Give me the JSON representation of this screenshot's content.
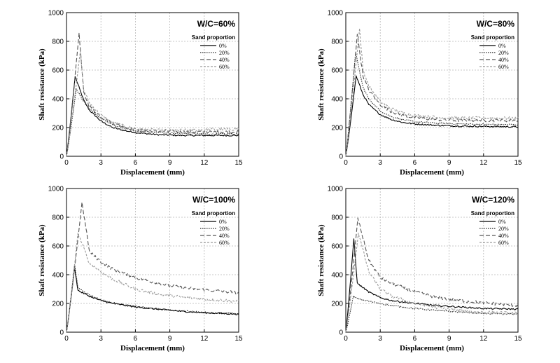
{
  "chart_data": [
    {
      "type": "line",
      "title": "W/C=60%",
      "xlabel": "Displacement (mm)",
      "ylabel": "Shaft resistance (kPa)",
      "xlim": [
        0,
        15
      ],
      "ylim": [
        0,
        1000
      ],
      "xticks": [
        "0",
        "3",
        "6",
        "9",
        "12",
        "15"
      ],
      "yticks": [
        "0",
        "200",
        "400",
        "600",
        "800",
        "1000"
      ],
      "grid": true,
      "legend_title": "Sand proportion",
      "legend_position": "top-right",
      "series": [
        {
          "name": "0%",
          "color": "#000000",
          "dash": "",
          "peak": [
            0.75,
            555
          ],
          "x": [
            1.5,
            2,
            3,
            4,
            5,
            6,
            8,
            10,
            12,
            15
          ],
          "y": [
            390,
            320,
            245,
            200,
            180,
            165,
            150,
            145,
            145,
            145
          ]
        },
        {
          "name": "20%",
          "color": "#222222",
          "dash": "1.5 1.5",
          "peak": [
            0.85,
            470
          ],
          "x": [
            1.5,
            2,
            3,
            4,
            5,
            6,
            8,
            10,
            12,
            15
          ],
          "y": [
            380,
            330,
            265,
            220,
            195,
            175,
            165,
            160,
            155,
            155
          ]
        },
        {
          "name": "40%",
          "color": "#555555",
          "dash": "6 3",
          "peak": [
            1.1,
            860
          ],
          "x": [
            1.5,
            2,
            3,
            4,
            5,
            6,
            8,
            10,
            12,
            15
          ],
          "y": [
            440,
            350,
            275,
            230,
            205,
            185,
            175,
            170,
            170,
            170
          ]
        },
        {
          "name": "60%",
          "color": "#9a9a9a",
          "dash": "3 2",
          "peak": [
            1.2,
            730
          ],
          "x": [
            1.5,
            2,
            3,
            4,
            5,
            6,
            8,
            10,
            12,
            15
          ],
          "y": [
            460,
            370,
            285,
            235,
            210,
            190,
            180,
            180,
            185,
            190
          ]
        }
      ]
    },
    {
      "type": "line",
      "title": "W/C=80%",
      "xlabel": "Displacement (mm)",
      "ylabel": "Shaft resistance (kPa)",
      "xlim": [
        0,
        15
      ],
      "ylim": [
        0,
        1000
      ],
      "xticks": [
        "0",
        "3",
        "6",
        "9",
        "12",
        "15"
      ],
      "yticks": [
        "0",
        "200",
        "400",
        "600",
        "800",
        "1000"
      ],
      "grid": true,
      "legend_title": "Sand proportion",
      "legend_position": "top-right",
      "series": [
        {
          "name": "0%",
          "color": "#000000",
          "dash": "",
          "peak": [
            0.9,
            560
          ],
          "x": [
            1.5,
            2,
            3,
            4,
            5,
            6,
            8,
            10,
            12,
            15
          ],
          "y": [
            430,
            360,
            290,
            255,
            235,
            225,
            215,
            210,
            208,
            205
          ]
        },
        {
          "name": "20%",
          "color": "#222222",
          "dash": "1.5 1.5",
          "peak": [
            0.85,
            720
          ],
          "x": [
            1.5,
            2,
            3,
            4,
            5,
            6,
            8,
            10,
            12,
            15
          ],
          "y": [
            480,
            400,
            315,
            275,
            255,
            240,
            230,
            225,
            222,
            220
          ]
        },
        {
          "name": "40%",
          "color": "#555555",
          "dash": "6 3",
          "peak": [
            1.0,
            850
          ],
          "x": [
            1.5,
            2,
            3,
            4,
            5,
            6,
            8,
            10,
            12,
            15
          ],
          "y": [
            560,
            460,
            360,
            310,
            285,
            270,
            255,
            250,
            250,
            250
          ]
        },
        {
          "name": "60%",
          "color": "#9a9a9a",
          "dash": "3 2",
          "peak": [
            1.2,
            890
          ],
          "x": [
            1.5,
            2,
            3,
            4,
            5,
            6,
            8,
            10,
            12,
            15
          ],
          "y": [
            600,
            490,
            380,
            330,
            300,
            285,
            270,
            265,
            265,
            265
          ]
        }
      ]
    },
    {
      "type": "line",
      "title": "W/C=100%",
      "xlabel": "Displacement (mm)",
      "ylabel": "Shaft resistance (kPa)",
      "xlim": [
        0,
        15
      ],
      "ylim": [
        0,
        1000
      ],
      "xticks": [
        "0",
        "3",
        "6",
        "9",
        "12",
        "15"
      ],
      "yticks": [
        "0",
        "200",
        "400",
        "600",
        "800",
        "1000"
      ],
      "grid": true,
      "legend_title": "Sand proportion",
      "legend_position": "top-right",
      "series": [
        {
          "name": "0%",
          "color": "#000000",
          "dash": "",
          "peak": [
            0.7,
            450
          ],
          "x": [
            1,
            2,
            3,
            4,
            6,
            8,
            10,
            12,
            15
          ],
          "y": [
            290,
            250,
            220,
            200,
            175,
            160,
            145,
            135,
            125
          ]
        },
        {
          "name": "20%",
          "color": "#222222",
          "dash": "1.5 1.5",
          "peak": [
            0.7,
            470
          ],
          "x": [
            1,
            2,
            3,
            4,
            6,
            8,
            10,
            12,
            15
          ],
          "y": [
            310,
            260,
            225,
            205,
            180,
            160,
            148,
            138,
            128
          ]
        },
        {
          "name": "40%",
          "color": "#555555",
          "dash": "6 3",
          "peak": [
            1.35,
            905
          ],
          "x": [
            2,
            3,
            4,
            6,
            8,
            10,
            12,
            15
          ],
          "y": [
            560,
            490,
            440,
            380,
            340,
            310,
            295,
            275
          ]
        },
        {
          "name": "60%",
          "color": "#9a9a9a",
          "dash": "3 2",
          "peak": [
            1.0,
            690
          ],
          "x": [
            2,
            3,
            4,
            6,
            8,
            10,
            12,
            15
          ],
          "y": [
            480,
            420,
            370,
            300,
            265,
            245,
            230,
            215
          ]
        }
      ]
    },
    {
      "type": "line",
      "title": "W/C=120%",
      "xlabel": "Displacement (mm)",
      "ylabel": "Shaft resistance (kPa)",
      "xlim": [
        0,
        15
      ],
      "ylim": [
        0,
        1000
      ],
      "xticks": [
        "0",
        "3",
        "6",
        "9",
        "12",
        "15"
      ],
      "yticks": [
        "0",
        "200",
        "400",
        "600",
        "800",
        "1000"
      ],
      "grid": true,
      "legend_title": "Sand proportion",
      "legend_position": "top-right",
      "series": [
        {
          "name": "0%",
          "color": "#000000",
          "dash": "",
          "peak": [
            0.7,
            650
          ],
          "x": [
            1,
            2,
            3,
            4,
            6,
            8,
            10,
            12,
            15
          ],
          "y": [
            340,
            280,
            240,
            220,
            200,
            185,
            175,
            165,
            160
          ]
        },
        {
          "name": "20%",
          "color": "#222222",
          "dash": "1.5 1.5",
          "peak": [
            0.65,
            250
          ],
          "x": [
            1,
            2,
            3,
            4,
            6,
            8,
            10,
            12,
            15
          ],
          "y": [
            235,
            215,
            200,
            185,
            165,
            150,
            140,
            130,
            125
          ]
        },
        {
          "name": "40%",
          "color": "#555555",
          "dash": "6 3",
          "peak": [
            1.05,
            795
          ],
          "x": [
            2,
            3,
            4,
            6,
            8,
            10,
            12,
            15
          ],
          "y": [
            500,
            380,
            340,
            280,
            240,
            220,
            205,
            185
          ]
        },
        {
          "name": "60%",
          "color": "#9a9a9a",
          "dash": "3 2",
          "peak": [
            1.1,
            690
          ],
          "x": [
            2,
            3,
            4,
            6,
            8,
            10,
            12,
            15
          ],
          "y": [
            420,
            300,
            250,
            200,
            170,
            150,
            140,
            130
          ]
        }
      ]
    }
  ]
}
